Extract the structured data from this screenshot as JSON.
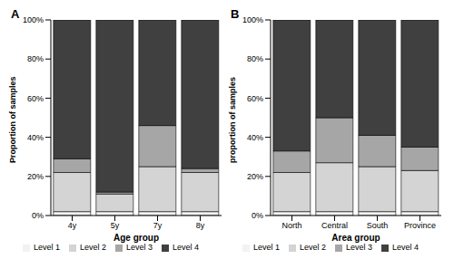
{
  "chart_data": [
    {
      "type": "bar",
      "title": "A",
      "x_label": "Age group",
      "y_label": "Proportion of samples",
      "categories": [
        "4y",
        "5y",
        "7y",
        "8y"
      ],
      "series": [
        {
          "name": "Level 1",
          "color": "#f2f2f2",
          "values": [
            2,
            2,
            2,
            2
          ]
        },
        {
          "name": "Level 2",
          "color": "#d4d4d4",
          "values": [
            20,
            9,
            23,
            20
          ]
        },
        {
          "name": "Level 3",
          "color": "#a6a6a6",
          "values": [
            7,
            1,
            21,
            2
          ]
        },
        {
          "name": "Level 4",
          "color": "#404040",
          "values": [
            71,
            88,
            54,
            76
          ]
        }
      ],
      "ylim": [
        0,
        100
      ],
      "yticks": [
        {
          "value": 0,
          "label": "0%"
        },
        {
          "value": 20,
          "label": "20%"
        },
        {
          "value": 40,
          "label": "40%"
        },
        {
          "value": 60,
          "label": "60%"
        },
        {
          "value": 80,
          "label": "80%"
        },
        {
          "value": 100,
          "label": "100%"
        }
      ],
      "stacked": true,
      "grid": false,
      "legend": "bottom"
    },
    {
      "type": "bar",
      "title": "B",
      "x_label": "Area group",
      "y_label": "proportion of samples",
      "categories": [
        "North",
        "Central",
        "South",
        "Province"
      ],
      "series": [
        {
          "name": "Level 1",
          "color": "#f2f2f2",
          "values": [
            2,
            2,
            2,
            2
          ]
        },
        {
          "name": "Level 2",
          "color": "#d4d4d4",
          "values": [
            20,
            25,
            23,
            21
          ]
        },
        {
          "name": "Level 3",
          "color": "#a6a6a6",
          "values": [
            11,
            23,
            16,
            12
          ]
        },
        {
          "name": "Level 4",
          "color": "#404040",
          "values": [
            67,
            50,
            59,
            65
          ]
        }
      ],
      "ylim": [
        0,
        100
      ],
      "yticks": [
        {
          "value": 0,
          "label": "0%"
        },
        {
          "value": 20,
          "label": "20%"
        },
        {
          "value": 40,
          "label": "40%"
        },
        {
          "value": 60,
          "label": "60%"
        },
        {
          "value": 80,
          "label": "80%"
        },
        {
          "value": 100,
          "label": "100%"
        }
      ],
      "stacked": true,
      "grid": false,
      "legend": "bottom"
    }
  ]
}
